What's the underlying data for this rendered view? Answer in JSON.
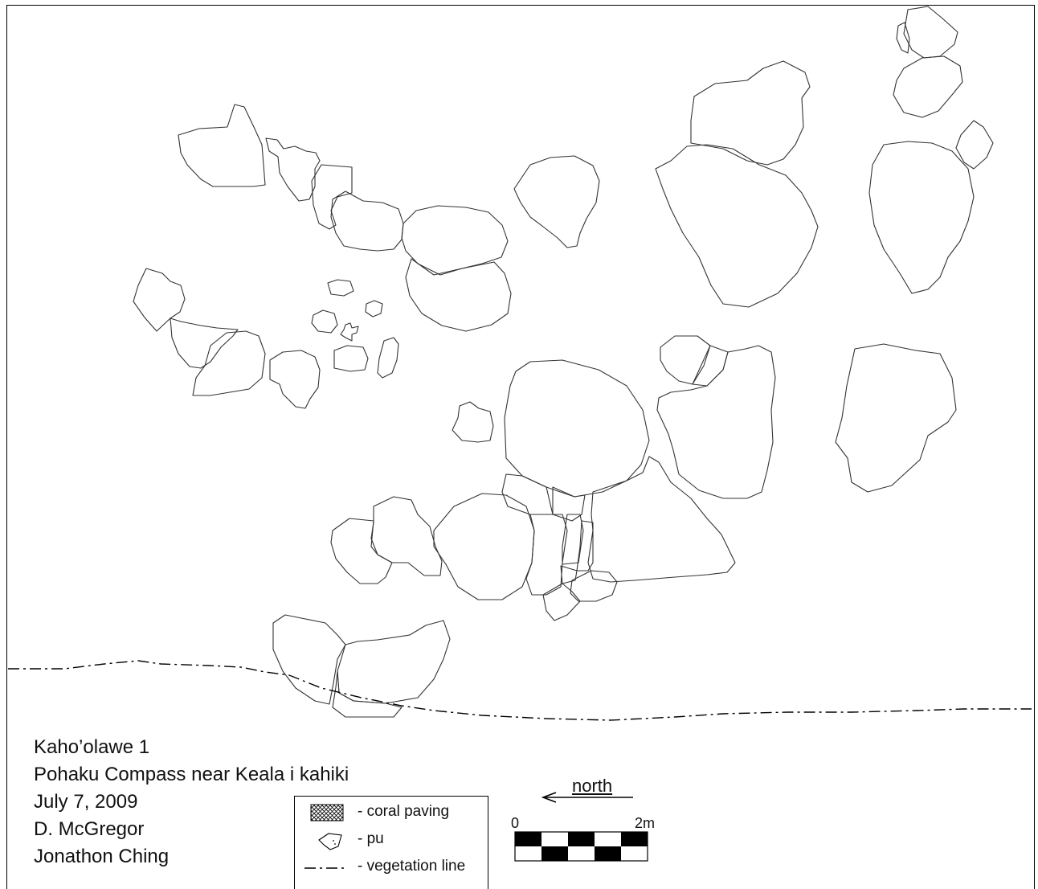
{
  "caption": {
    "line1": "Kaho’olawe 1",
    "line2": "Pohaku Compass near Keala i kahiki",
    "line3": "July 7, 2009",
    "line4": "D. McGregor",
    "line5": "Jonathon Ching"
  },
  "legend": {
    "items": [
      {
        "symbol": "crosshatch-swatch-icon",
        "label": "- coral paving"
      },
      {
        "symbol": "pu-stone-icon",
        "label": "- pu"
      },
      {
        "symbol": "dash-dot-line-icon",
        "label": "- vegetation line"
      }
    ]
  },
  "north_arrow": {
    "label": "north",
    "direction": "left"
  },
  "scale_bar": {
    "start_label": "0",
    "end_label": "2m",
    "segments": 5
  },
  "colors": {
    "ink": "#000000",
    "paper": "#ffffff",
    "stone_outline": "#333333"
  }
}
